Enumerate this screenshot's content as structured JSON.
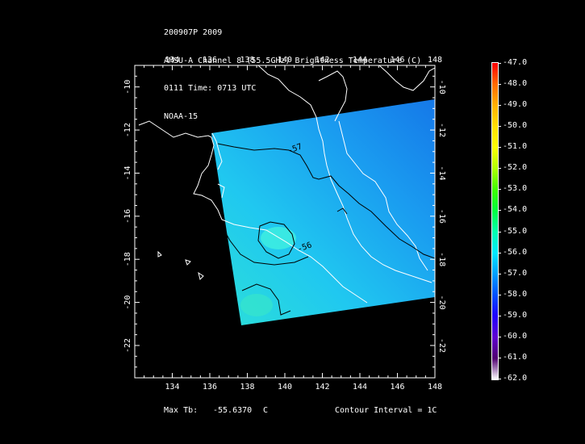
{
  "header": {
    "line1": "200907P 2009",
    "line2": "AMSU-A Channel 8 (55.5GHz) Brightness Temperature (C)",
    "line3": "0111 Time: 0713 UTC",
    "line4": "NOAA-15"
  },
  "map": {
    "lon_range": [
      132,
      148
    ],
    "lat_range": [
      -23.5,
      -9
    ],
    "lon_ticks": [
      "134",
      "136",
      "138",
      "140",
      "142",
      "144",
      "146",
      "148"
    ],
    "lat_ticks": [
      "-10",
      "-12",
      "-14",
      "-16",
      "-18",
      "-20",
      "-22"
    ],
    "contour_labels": [
      "-57",
      "-56"
    ]
  },
  "footer": {
    "max_tb_label": "Max Tb:",
    "max_tb_value": "-55.6370",
    "max_tb_unit": "C",
    "contour_interval": "Contour Interval = 1C"
  },
  "color_scale": {
    "labels": [
      "-47.0",
      "-48.0",
      "-49.0",
      "-50.0",
      "-51.0",
      "-52.0",
      "-53.0",
      "-54.0",
      "-55.0",
      "-56.0",
      "-57.0",
      "-58.0",
      "-59.0",
      "-60.0",
      "-61.0",
      "-62.0"
    ],
    "colors": [
      "#ff0000",
      "#ff6a00",
      "#ffb000",
      "#ffe000",
      "#ffff00",
      "#b0ff00",
      "#40ff00",
      "#00ff40",
      "#00ffb0",
      "#00e8ff",
      "#00a0ff",
      "#0050ff",
      "#2000ff",
      "#6000d0",
      "#500070",
      "#ffffff"
    ]
  }
}
